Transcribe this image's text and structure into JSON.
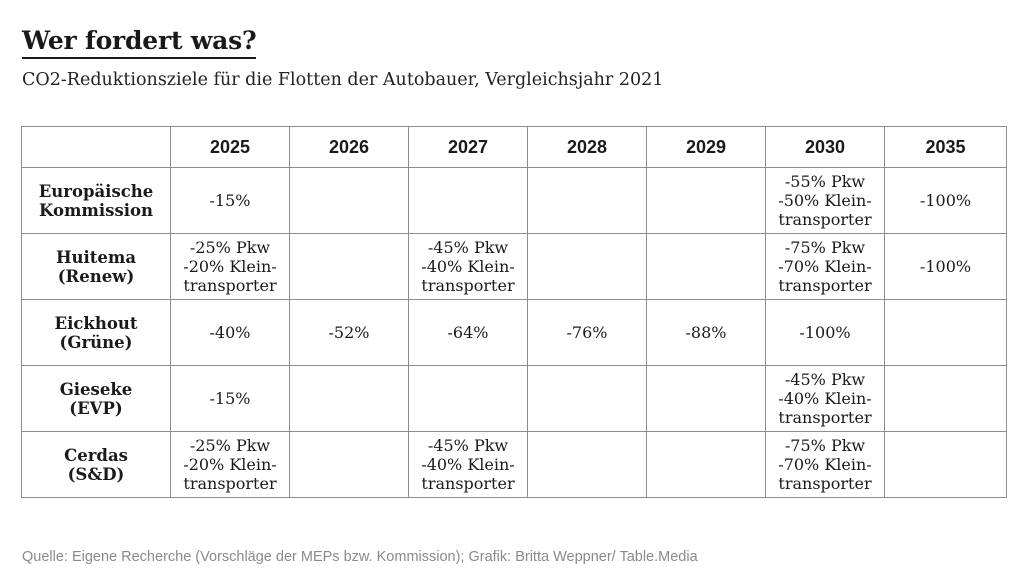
{
  "header": {
    "title": "Wer fordert was?",
    "subtitle": "CO2-Reduktionsziele für die Flotten der Autobauer, Vergleichsjahr 2021"
  },
  "chart_data": {
    "type": "table",
    "title": "Wer fordert was?",
    "subtitle": "CO2-Reduktionsziele für die Flotten der Autobauer, Vergleichsjahr 2021",
    "columns": [
      "2025",
      "2026",
      "2027",
      "2028",
      "2029",
      "2030",
      "2035"
    ],
    "rows": [
      {
        "label": [
          "Europäische",
          "Kommission"
        ],
        "cells": [
          [
            "-15%"
          ],
          [],
          [],
          [],
          [],
          [
            "-55% Pkw",
            "-50%  Klein-",
            "transporter"
          ],
          [
            "-100%"
          ]
        ]
      },
      {
        "label": [
          "Huitema",
          "(Renew)"
        ],
        "cells": [
          [
            "-25% Pkw",
            "-20%  Klein-",
            "transporter"
          ],
          [],
          [
            "-45% Pkw",
            "-40%  Klein-",
            "transporter"
          ],
          [],
          [],
          [
            "-75% Pkw",
            "-70%  Klein-",
            "transporter"
          ],
          [
            "-100%"
          ]
        ]
      },
      {
        "label": [
          "Eickhout",
          "(Grüne)"
        ],
        "cells": [
          [
            "-40%"
          ],
          [
            "-52%"
          ],
          [
            "-64%"
          ],
          [
            "-76%"
          ],
          [
            "-88%"
          ],
          [
            "-100%"
          ],
          []
        ]
      },
      {
        "label": [
          "Gieseke",
          "(EVP)"
        ],
        "cells": [
          [
            "-15%"
          ],
          [],
          [],
          [],
          [],
          [
            "-45% Pkw",
            "-40%  Klein-",
            "transporter"
          ],
          []
        ]
      },
      {
        "label": [
          "Cerdas",
          "(S&D)"
        ],
        "cells": [
          [
            "-25% Pkw",
            "-20%  Klein-",
            "transporter"
          ],
          [],
          [
            "-45% Pkw",
            "-40%  Klein-",
            "transporter"
          ],
          [],
          [],
          [
            "-75% Pkw",
            "-70%  Klein-",
            "transporter"
          ],
          []
        ]
      }
    ]
  },
  "footer": {
    "source": "Quelle: Eigene Recherche (Vorschläge der MEPs bzw. Kommission); Grafik: Britta Weppner/ Table.Media"
  }
}
